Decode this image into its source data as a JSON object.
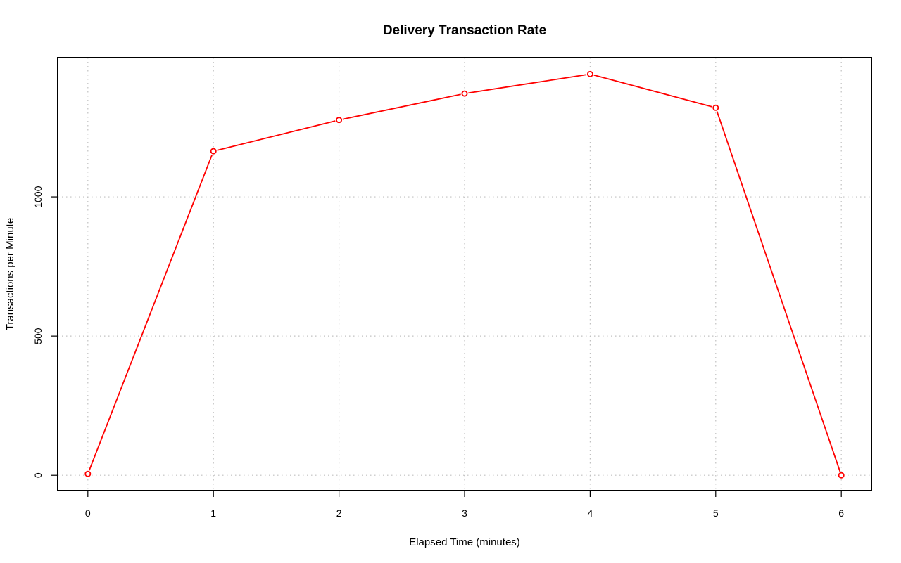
{
  "chart_data": {
    "type": "line",
    "title": "Delivery Transaction Rate",
    "xlabel": "Elapsed Time (minutes)",
    "ylabel": "Transactions per Minute",
    "x": [
      0,
      1,
      2,
      3,
      4,
      5,
      6
    ],
    "series": [
      {
        "values": [
          5,
          1164,
          1276,
          1371,
          1441,
          1320,
          0
        ]
      }
    ],
    "xlim": [
      -0.24,
      6.24
    ],
    "ylim": [
      -55,
      1500
    ],
    "xticks": [
      "0",
      "1",
      "2",
      "3",
      "4",
      "5",
      "6"
    ],
    "yticks": [
      "0",
      "500",
      "1000"
    ],
    "grid": true,
    "legend": "none",
    "colors": {
      "line": "#ff0000",
      "grid": "#c0c0c0",
      "axis": "#000000"
    }
  }
}
